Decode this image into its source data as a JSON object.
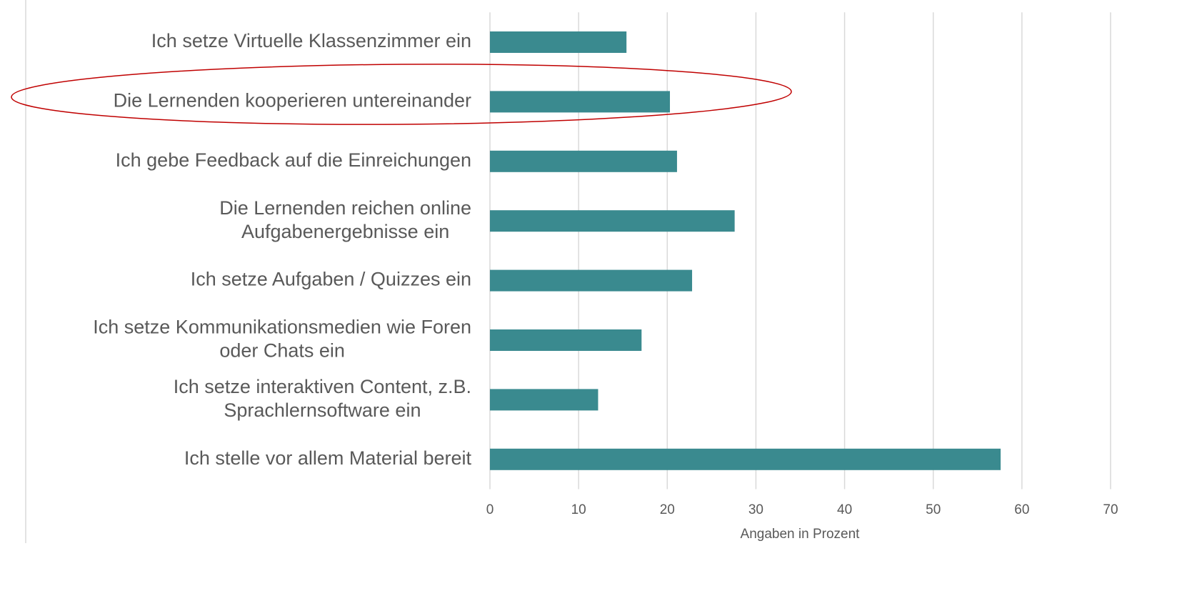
{
  "chart_data": {
    "type": "bar",
    "orientation": "horizontal",
    "categories": [
      [
        "Ich setze Virtuelle Klassenzimmer ein"
      ],
      [
        "Die Lernenden kooperieren untereinander"
      ],
      [
        "Ich gebe Feedback auf die Einreichungen"
      ],
      [
        "Die Lernenden reichen online",
        "Aufgabenergebnisse ein"
      ],
      [
        "Ich setze Aufgaben / Quizzes ein"
      ],
      [
        "Ich setze Kommunikationsmedien wie Foren",
        "oder Chats ein"
      ],
      [
        "Ich setze interaktiven Content, z.B.",
        "Sprachlernsoftware ein"
      ],
      [
        "Ich stelle vor allem Material bereit"
      ]
    ],
    "values": [
      15.4,
      20.3,
      21.1,
      27.6,
      22.8,
      17.1,
      12.2,
      57.6
    ],
    "color": "#3a8a8f",
    "xlabel": "Angaben in Prozent",
    "xlim": [
      0,
      70
    ],
    "xticks": [
      0,
      10,
      20,
      30,
      40,
      50,
      60,
      70
    ],
    "grid": true
  }
}
